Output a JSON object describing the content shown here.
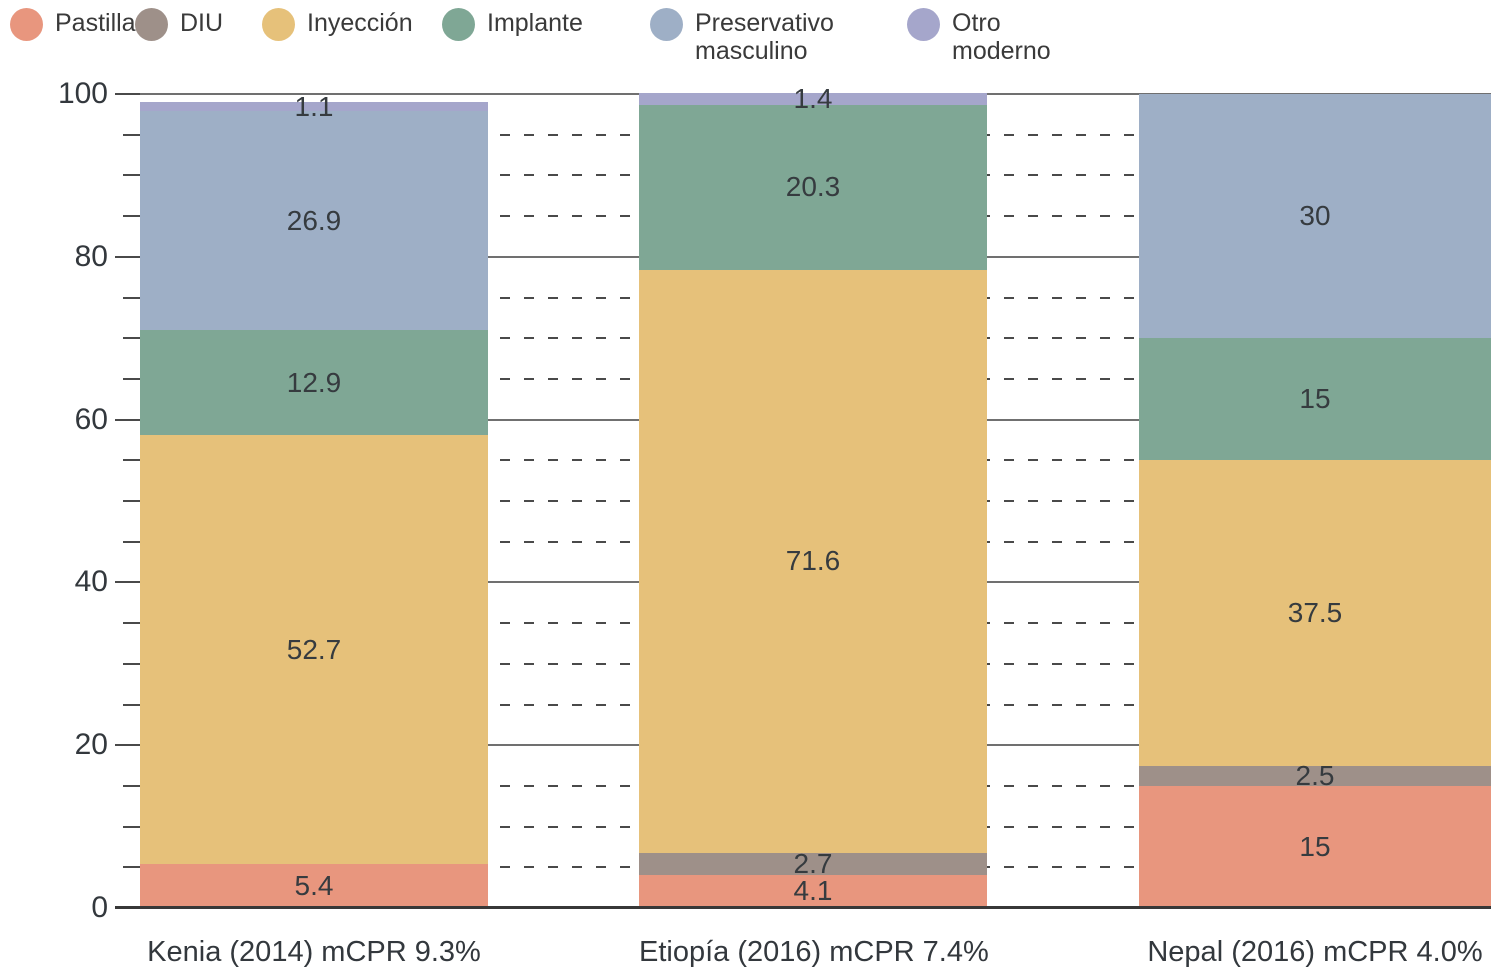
{
  "chart_data": {
    "type": "bar",
    "stacked": true,
    "title": "",
    "xlabel": "",
    "ylabel": "",
    "categories": [
      "Kenia (2014) mCPR 9.3%",
      "Etiopía  (2016) mCPR 7.4%",
      "Nepal (2016) mCPR 4.0%"
    ],
    "series": [
      {
        "name": "Pastilla",
        "color": "#E8967E",
        "values": [
          5.4,
          4.1,
          15
        ]
      },
      {
        "name": "DIU",
        "color": "#9E9089",
        "values": [
          null,
          2.7,
          2.5
        ]
      },
      {
        "name": "Inyección",
        "color": "#E6C17A",
        "values": [
          52.7,
          71.6,
          37.5
        ]
      },
      {
        "name": "Implante",
        "color": "#7FA795",
        "values": [
          12.9,
          20.3,
          15
        ]
      },
      {
        "name": "Preservativo masculino",
        "color": "#9EAFC6",
        "values": [
          26.9,
          null,
          30
        ]
      },
      {
        "name": "Otro moderno",
        "color": "#A5A6CB",
        "values": [
          1.1,
          1.4,
          null
        ]
      }
    ],
    "ylim": [
      0,
      100
    ],
    "y_major_ticks": [
      0,
      20,
      40,
      60,
      80,
      100
    ],
    "y_minor_step": 5,
    "grid": {
      "major": "solid",
      "minor": "dashed"
    },
    "legend_position": "top",
    "bar_totals": [
      99.0,
      100.1,
      100.0
    ]
  }
}
